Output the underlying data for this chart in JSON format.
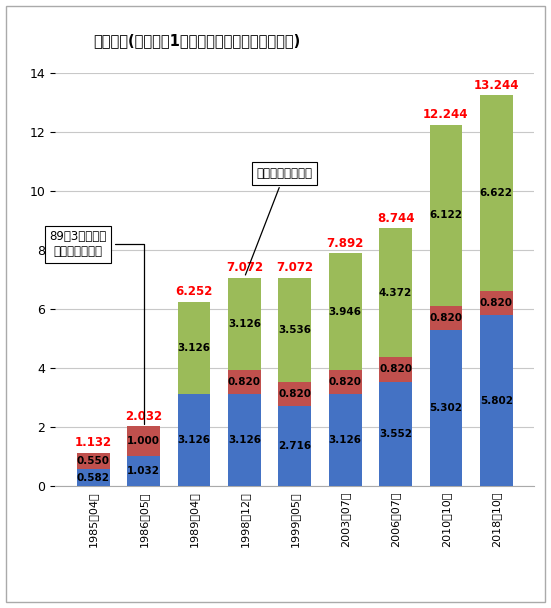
{
  "title": "たばこ税(従量税、1本あたり、消費税含まず、円)",
  "categories": [
    "1985年04月",
    "1986年05月",
    "1989年04月",
    "1998年12月",
    "1999年05月",
    "2003年07月",
    "2006年07月",
    "2010年10月",
    "2018年10月"
  ],
  "national_tax": [
    0.582,
    1.032,
    3.126,
    3.126,
    2.716,
    3.126,
    3.552,
    5.302,
    5.802
  ],
  "special_tax": [
    0.55,
    1.0,
    0.0,
    0.82,
    0.82,
    0.82,
    0.82,
    0.82,
    0.82
  ],
  "local_tax": [
    0.0,
    0.0,
    3.126,
    3.126,
    3.536,
    3.946,
    4.372,
    6.122,
    6.622
  ],
  "totals": [
    1.132,
    2.032,
    6.252,
    7.072,
    7.072,
    7.892,
    8.744,
    12.244,
    13.244
  ],
  "national_tax_labels": [
    "0.582",
    "1.032",
    "3.126",
    "3.126",
    "2.716",
    "3.126",
    "3.552",
    "5.302",
    "5.802"
  ],
  "special_tax_labels": [
    "0.550",
    "1.000",
    "",
    "0.820",
    "0.820",
    "0.820",
    "0.820",
    "0.820",
    "0.820"
  ],
  "local_tax_labels": [
    "",
    "",
    "3.126",
    "3.126",
    "3.536",
    "3.946",
    "4.372",
    "6.122",
    "6.622"
  ],
  "total_labels": [
    "1.132",
    "2.032",
    "6.252",
    "7.072",
    "7.072",
    "7.892",
    "8.744",
    "12.244",
    "13.244"
  ],
  "bar_color_national": "#4472c4",
  "bar_color_special": "#c0504d",
  "bar_color_local": "#9bbb59",
  "ylim": [
    0,
    14
  ],
  "yticks": [
    0,
    2,
    4,
    6,
    8,
    10,
    12,
    14
  ],
  "annotation1_text": "89年3月までは\n他に従価税併課",
  "annotation2_text": "国・地方配分変更"
}
